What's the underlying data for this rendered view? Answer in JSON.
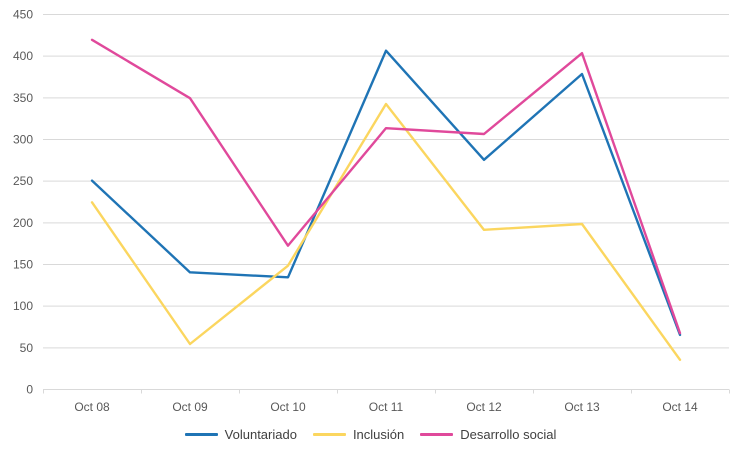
{
  "chart_data": {
    "type": "line",
    "title": "",
    "xlabel": "",
    "ylabel": "",
    "categories": [
      "Oct 08",
      "Oct 09",
      "Oct 10",
      "Oct 11",
      "Oct 12",
      "Oct 13",
      "Oct 14"
    ],
    "series": [
      {
        "name": "Voluntariado",
        "color": "#1F74B5",
        "values": [
          250,
          140,
          134,
          406,
          275,
          378,
          65
        ]
      },
      {
        "name": "Inclusión",
        "color": "#FBD65F",
        "values": [
          224,
          54,
          148,
          342,
          191,
          198,
          35
        ]
      },
      {
        "name": "Desarrollo social",
        "color": "#E0499B",
        "values": [
          419,
          349,
          172,
          313,
          306,
          403,
          67
        ]
      }
    ],
    "ylim": [
      0,
      450
    ],
    "ytick_step": 50,
    "ytick_labels": [
      "0",
      "50",
      "100",
      "150",
      "200",
      "250",
      "300",
      "350",
      "400",
      "450"
    ],
    "grid": true,
    "legend_position": "bottom",
    "colors": {
      "gridline": "#D9D9D9",
      "axis_line": "#D9D9D9",
      "axis_text": "#595959",
      "legend_text": "#404040",
      "background": "#FFFFFF"
    }
  }
}
